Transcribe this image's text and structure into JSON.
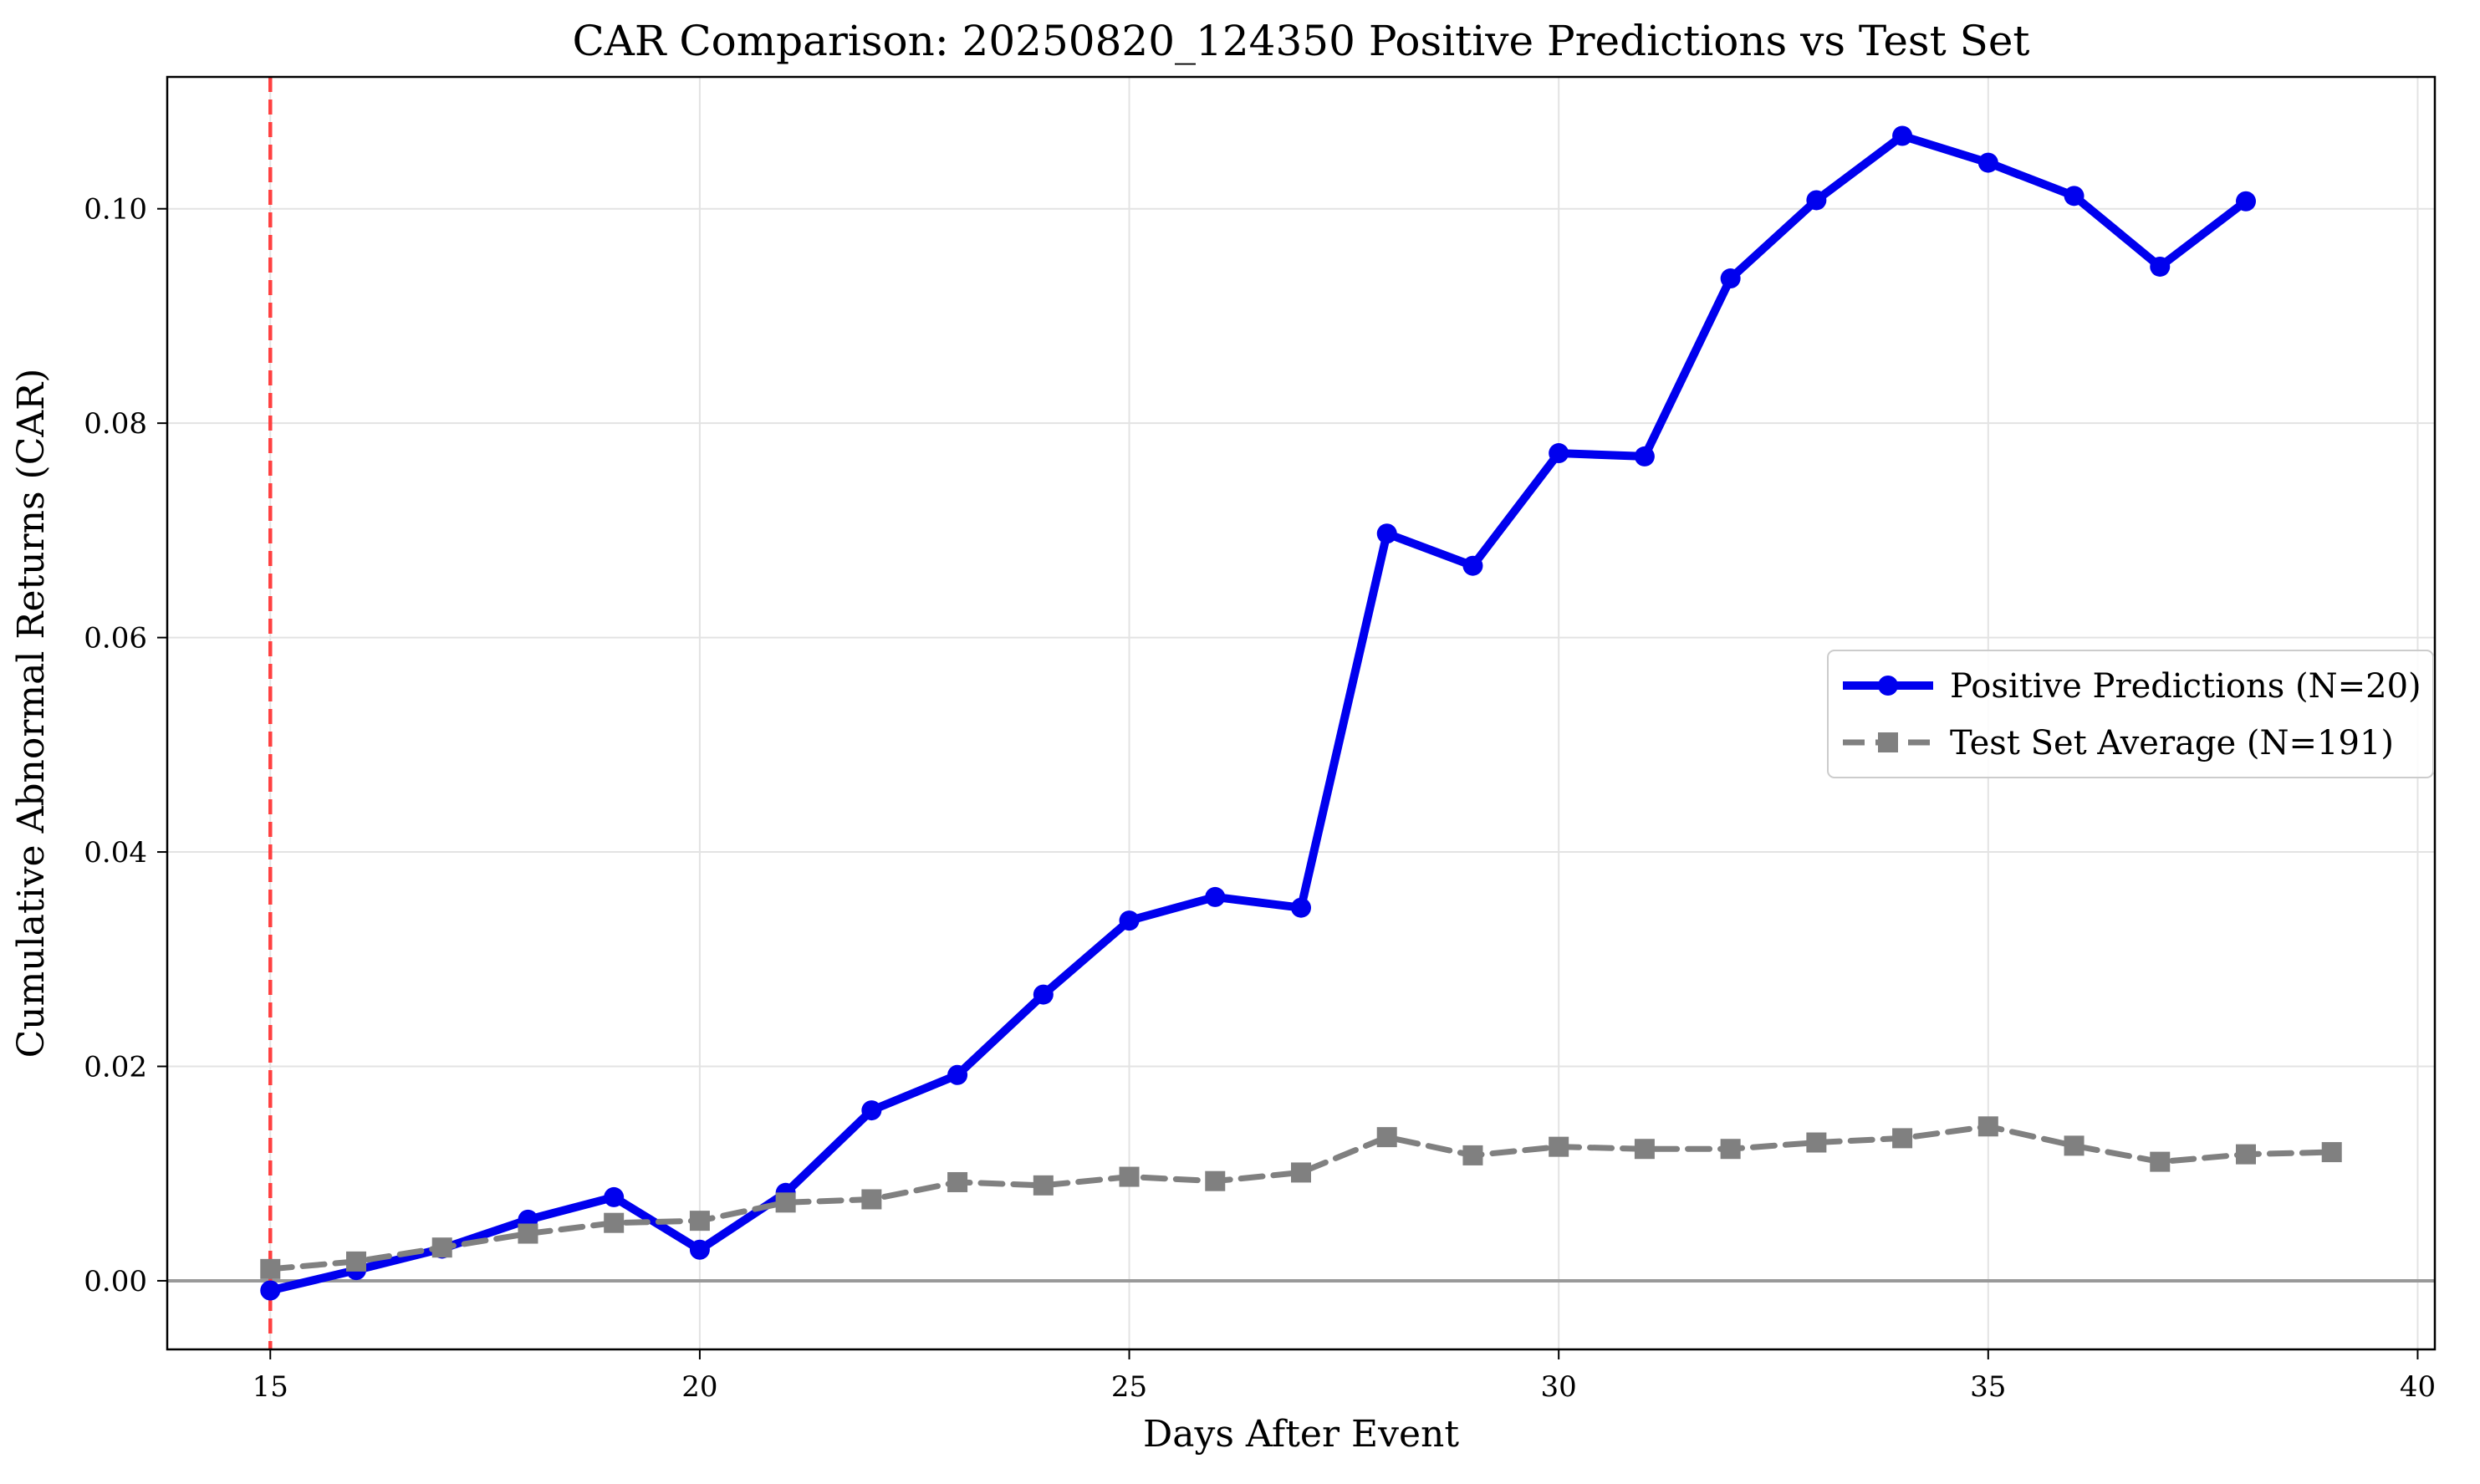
{
  "chart_data": {
    "type": "line",
    "title": "CAR Comparison: 20250820_124350 Positive Predictions vs Test Set",
    "xlabel": "Days After Event",
    "ylabel": "Cumulative Abnormal Returns (CAR)",
    "xlim": [
      13.8,
      40.2
    ],
    "ylim": [
      -0.0064,
      0.1123
    ],
    "x_ticks": [
      15,
      20,
      25,
      30,
      35,
      40
    ],
    "x_tick_labels": [
      "15",
      "20",
      "25",
      "30",
      "35",
      "40"
    ],
    "y_ticks": [
      0.0,
      0.02,
      0.04,
      0.06,
      0.08,
      0.1
    ],
    "y_tick_labels": [
      "0.00",
      "0.02",
      "0.04",
      "0.06",
      "0.08",
      "0.10"
    ],
    "grid": true,
    "legend_position": "center-right",
    "event_line": {
      "x": 15,
      "color": "#ff4040",
      "style": "dashed"
    },
    "zero_line": {
      "y": 0,
      "color": "#999999"
    },
    "series": [
      {
        "name": "Positive Predictions (N=20)",
        "color": "#0000ee",
        "marker": "circle",
        "line_style": "solid",
        "x": [
          15,
          16,
          17,
          18,
          19,
          20,
          21,
          22,
          23,
          24,
          25,
          26,
          27,
          28,
          29,
          30,
          31,
          32,
          33,
          34,
          35,
          36,
          37,
          38
        ],
        "values": [
          -0.0009,
          0.001,
          0.003,
          0.0057,
          0.0078,
          0.0029,
          0.0082,
          0.0159,
          0.0192,
          0.0267,
          0.0336,
          0.0358,
          0.0348,
          0.0697,
          0.0667,
          0.0772,
          0.0769,
          0.0935,
          0.1008,
          0.1068,
          0.1043,
          0.1012,
          0.0946,
          0.1007
        ]
      },
      {
        "name": "Test Set Average (N=191)",
        "color": "#808080",
        "marker": "square",
        "line_style": "dashed",
        "x": [
          15,
          16,
          17,
          18,
          19,
          20,
          21,
          22,
          23,
          24,
          25,
          26,
          27,
          28,
          29,
          30,
          31,
          32,
          33,
          34,
          35,
          36,
          37,
          38,
          39
        ],
        "values": [
          0.0011,
          0.0018,
          0.0031,
          0.0044,
          0.0054,
          0.0056,
          0.0073,
          0.0076,
          0.0092,
          0.0089,
          0.0097,
          0.0093,
          0.0101,
          0.0134,
          0.0117,
          0.0125,
          0.0123,
          0.0123,
          0.0129,
          0.0133,
          0.0144,
          0.0126,
          0.0111,
          0.0118,
          0.012
        ]
      }
    ]
  }
}
